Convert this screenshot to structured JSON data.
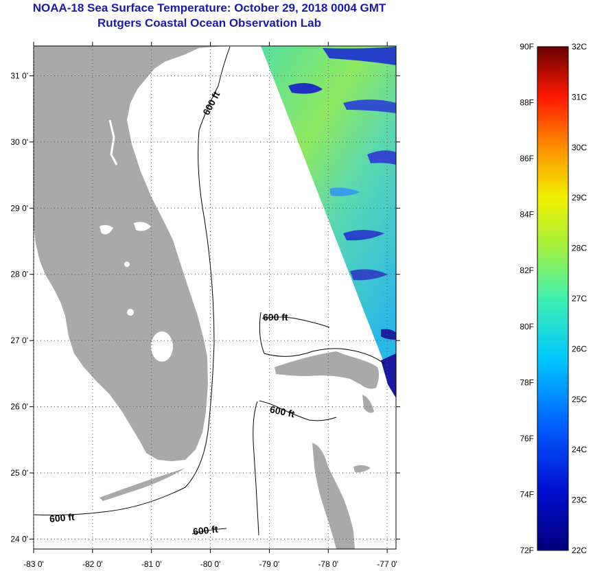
{
  "header": {
    "title": "NOAA-18 Sea Surface Temperature:  October 29, 2018 0004 GMT",
    "subtitle": "Rutgers Coastal Ocean Observation Lab"
  },
  "map": {
    "lat_labels": [
      "31 0'",
      "30 0'",
      "29 0'",
      "28 0'",
      "27 0'",
      "26 0'",
      "25 0'",
      "24 0'"
    ],
    "lon_labels": [
      "-83 0'",
      "-82 0'",
      "-81 0'",
      "-80 0'",
      "-79 0'",
      "-78 0'",
      "-77 0'"
    ],
    "lat_values": [
      31,
      30,
      29,
      28,
      27,
      26,
      25,
      24
    ],
    "lon_values": [
      -83,
      -82,
      -81,
      -80,
      -79,
      -78,
      -77
    ],
    "extent": {
      "lon_min": -83,
      "lon_max": -76.85,
      "lat_min": 23.85,
      "lat_max": 31.45
    },
    "contour_labels": [
      "600 ft",
      "600 ft",
      "600 ft",
      "600 ft",
      "600 ft"
    ],
    "colors": {
      "land": "#a9a9a9",
      "water": "#ffffff",
      "grid": "#555555"
    }
  },
  "colorbar": {
    "f_labels": [
      "90F",
      "88F",
      "86F",
      "84F",
      "82F",
      "80F",
      "78F",
      "76F",
      "74F",
      "72F"
    ],
    "c_labels": [
      "32C",
      "31C",
      "30C",
      "29C",
      "28C",
      "27C",
      "26C",
      "25C",
      "24C",
      "23C",
      "22C"
    ],
    "c_min": 22,
    "c_max": 32,
    "f_min": 72,
    "f_max": 90
  }
}
